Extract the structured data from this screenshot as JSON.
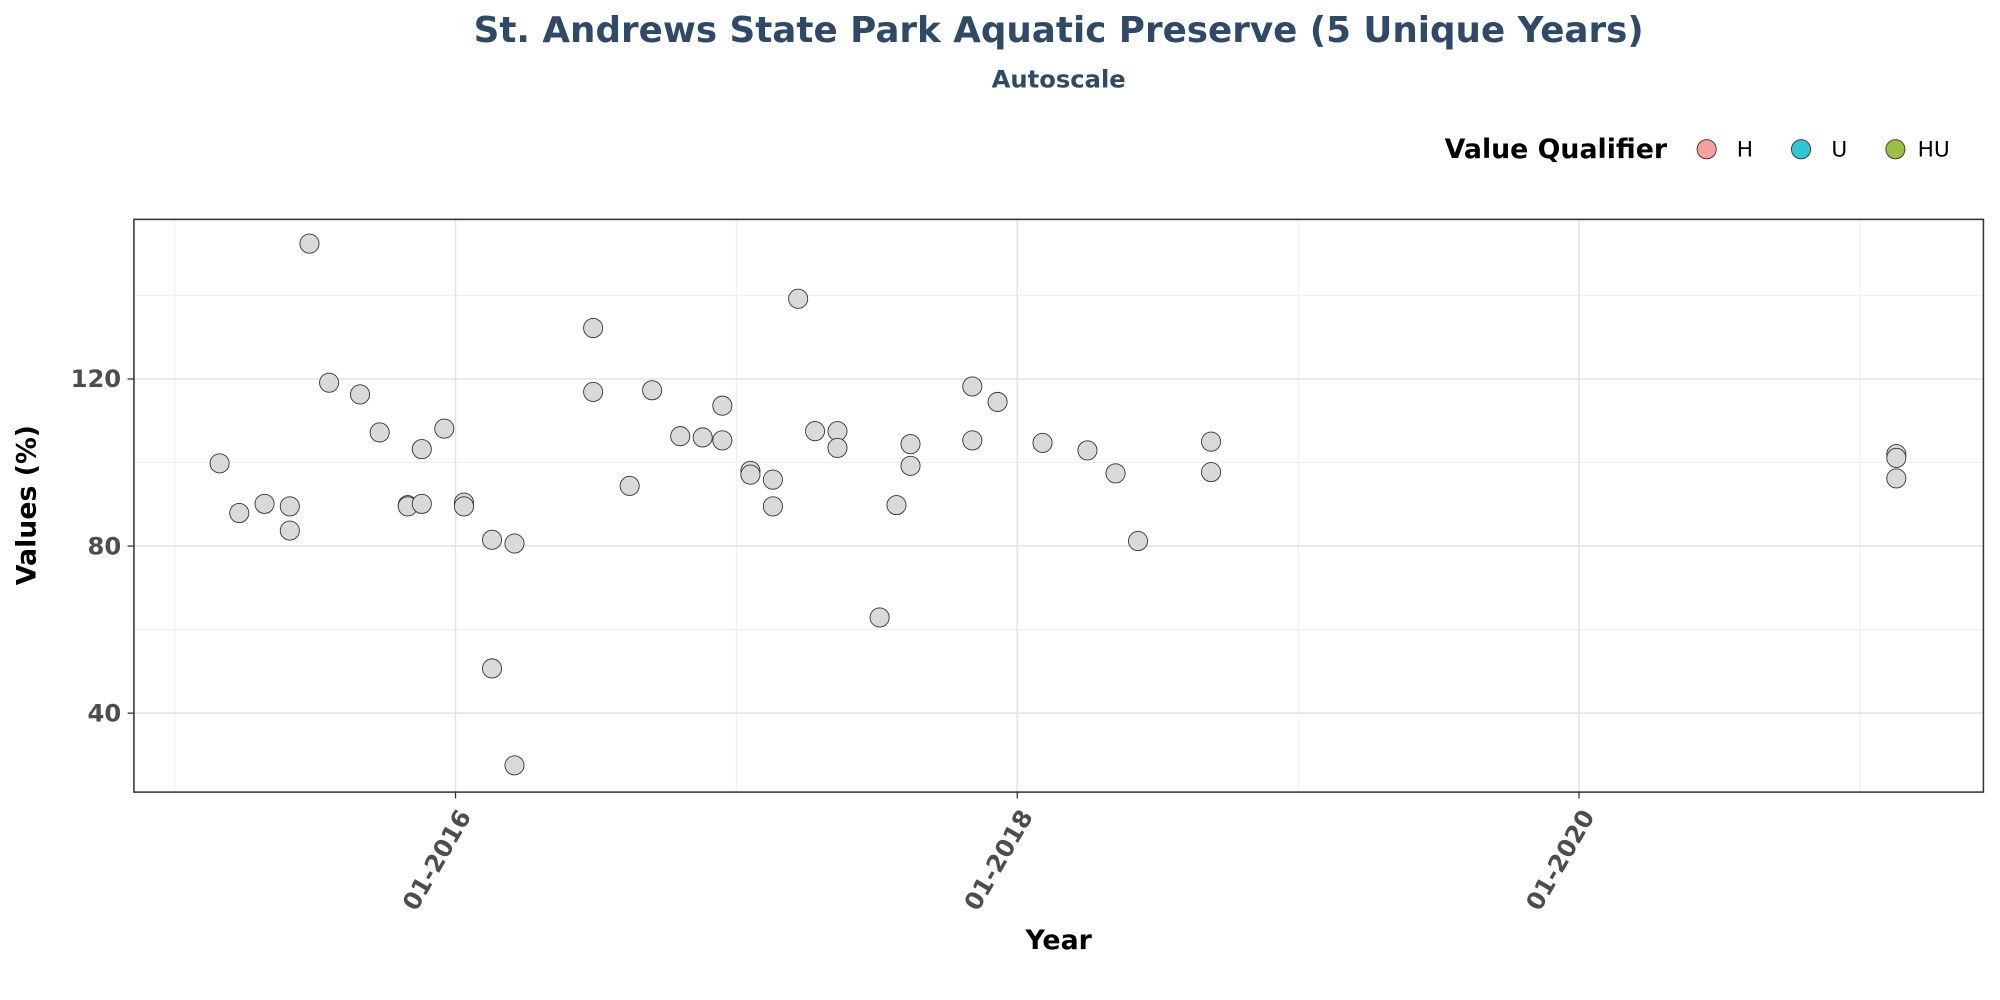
{
  "chart_data": {
    "type": "scatter",
    "title": "St. Andrews State Park Aquatic Preserve (5 Unique Years)",
    "subtitle": "Autoscale",
    "x_label": "Year",
    "y_label": "Values (%)",
    "legend": {
      "title": "Value Qualifier",
      "items": [
        {
          "name": "H",
          "color": "#f8a09a"
        },
        {
          "name": "U",
          "color": "#2fc7d3"
        },
        {
          "name": "HU",
          "color": "#9dbf42"
        }
      ]
    },
    "point_color": "#d9d9d9",
    "x": [
      2015.16,
      2015.23,
      2015.32,
      2015.41,
      2015.41,
      2015.48,
      2015.55,
      2015.66,
      2015.73,
      2015.83,
      2015.83,
      2015.88,
      2015.88,
      2015.96,
      2016.03,
      2016.03,
      2016.13,
      2016.13,
      2016.21,
      2016.21,
      2016.49,
      2016.49,
      2016.62,
      2016.7,
      2016.8,
      2016.88,
      2016.95,
      2016.95,
      2017.05,
      2017.05,
      2017.13,
      2017.13,
      2017.22,
      2017.28,
      2017.36,
      2017.36,
      2017.51,
      2017.57,
      2017.62,
      2017.62,
      2017.84,
      2017.84,
      2017.93,
      2018.09,
      2018.25,
      2018.35,
      2018.43,
      2018.69,
      2018.69,
      2021.13,
      2021.13,
      2021.13
    ],
    "values": [
      99.8,
      87.9,
      90.1,
      89.5,
      83.7,
      152.4,
      119.1,
      116.3,
      107.2,
      89.8,
      89.5,
      90.1,
      103.2,
      108.1,
      90.4,
      89.5,
      81.5,
      50.7,
      80.6,
      27.5,
      132.2,
      116.9,
      94.4,
      117.3,
      106.3,
      106.0,
      113.6,
      105.3,
      98.0,
      97.1,
      95.9,
      89.5,
      139.2,
      107.5,
      107.5,
      103.5,
      62.9,
      89.8,
      104.4,
      99.2,
      118.2,
      105.3,
      114.5,
      104.7,
      102.9,
      97.4,
      81.2,
      105.0,
      97.7,
      102.0,
      101.1,
      96.2
    ],
    "xlim": [
      2014.855,
      2021.44
    ],
    "ylim": [
      21.1,
      158.2
    ],
    "xticks": [
      {
        "value": 2016,
        "label": "01-2016"
      },
      {
        "value": 2018,
        "label": "01-2018"
      },
      {
        "value": 2020,
        "label": "01-2020"
      }
    ],
    "x_minor_ticks": [
      2015,
      2017,
      2019,
      2021
    ],
    "yticks": [
      40,
      80,
      120
    ],
    "y_minor_ticks": [
      60,
      100,
      140
    ],
    "grid": true
  }
}
